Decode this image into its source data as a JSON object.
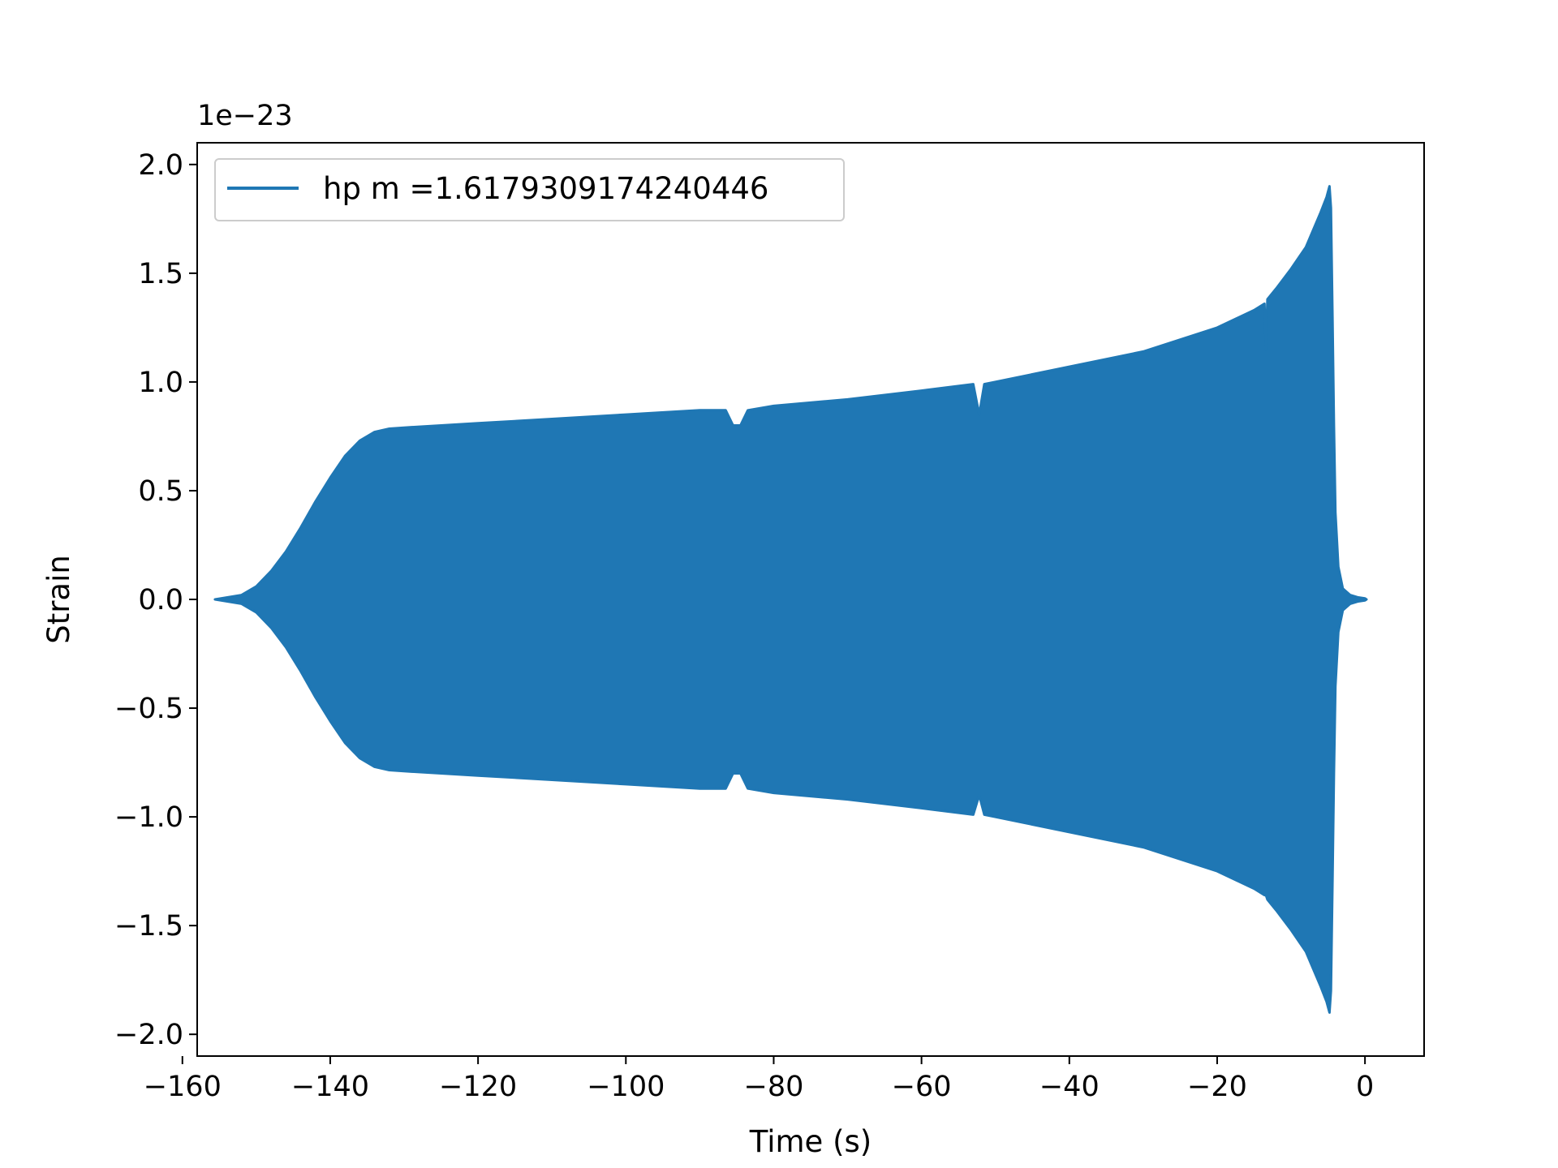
{
  "chart_data": {
    "type": "area",
    "xlabel": "Time (s)",
    "ylabel": "Strain",
    "y_offset_text": "1e−23",
    "y_scale_exponent": -23,
    "xlim": [
      -158,
      8
    ],
    "ylim": [
      -2.1,
      2.1
    ],
    "x_ticks": [
      -160,
      -140,
      -120,
      -100,
      -80,
      -60,
      -40,
      -20,
      0
    ],
    "x_tick_labels": [
      "−160",
      "−140",
      "−120",
      "−100",
      "−80",
      "−60",
      "−40",
      "−20",
      "0"
    ],
    "y_ticks": [
      -2.0,
      -1.5,
      -1.0,
      -0.5,
      0.0,
      0.5,
      1.0,
      1.5,
      2.0
    ],
    "y_tick_labels": [
      "−2.0",
      "−1.5",
      "−1.0",
      "−0.5",
      "0.0",
      "0.5",
      "1.0",
      "1.5",
      "2.0"
    ],
    "grid": false,
    "legend_position": "top-left",
    "series": [
      {
        "name": "hp m =1.6179309174240446",
        "color": "#1f77b4",
        "envelope_x": [
          -155.6,
          -152,
          -150,
          -148,
          -146,
          -144,
          -142,
          -140,
          -138,
          -136,
          -134,
          -132,
          -130,
          -125,
          -120,
          -110,
          -100,
          -90,
          -86.5,
          -85.5,
          -84.5,
          -83.5,
          -80,
          -70,
          -60,
          -53,
          -52.2,
          -51.5,
          -50,
          -40,
          -30,
          -20,
          -15,
          -13.6,
          -13.4,
          -13.2,
          -12,
          -10,
          -8,
          -6,
          -5.2,
          -4.8,
          -4.6,
          -4.4,
          -4.2,
          -4.0,
          -3.6,
          -3.0,
          -2.0,
          -1.0,
          0.0,
          0.2
        ],
        "envelope_upper": [
          0.0,
          0.02,
          0.06,
          0.13,
          0.22,
          0.33,
          0.45,
          0.56,
          0.66,
          0.73,
          0.77,
          0.785,
          0.79,
          0.8,
          0.81,
          0.83,
          0.85,
          0.87,
          0.87,
          0.8,
          0.8,
          0.87,
          0.89,
          0.92,
          0.96,
          0.99,
          0.85,
          0.99,
          1.0,
          1.07,
          1.14,
          1.25,
          1.33,
          1.36,
          1.15,
          1.38,
          1.43,
          1.52,
          1.62,
          1.78,
          1.85,
          1.9,
          1.8,
          1.3,
          0.8,
          0.4,
          0.15,
          0.05,
          0.02,
          0.01,
          0.005,
          0.0
        ],
        "envelope_lower": [
          0.0,
          -0.02,
          -0.06,
          -0.13,
          -0.22,
          -0.33,
          -0.45,
          -0.56,
          -0.66,
          -0.73,
          -0.77,
          -0.785,
          -0.79,
          -0.8,
          -0.81,
          -0.83,
          -0.85,
          -0.87,
          -0.87,
          -0.8,
          -0.8,
          -0.87,
          -0.89,
          -0.92,
          -0.96,
          -0.99,
          -0.9,
          -0.99,
          -1.0,
          -1.07,
          -1.14,
          -1.25,
          -1.33,
          -1.36,
          -1.36,
          -1.38,
          -1.43,
          -1.52,
          -1.62,
          -1.78,
          -1.85,
          -1.9,
          -1.8,
          -1.3,
          -0.8,
          -0.4,
          -0.15,
          -0.05,
          -0.02,
          -0.01,
          -0.005,
          0.0
        ]
      }
    ]
  }
}
